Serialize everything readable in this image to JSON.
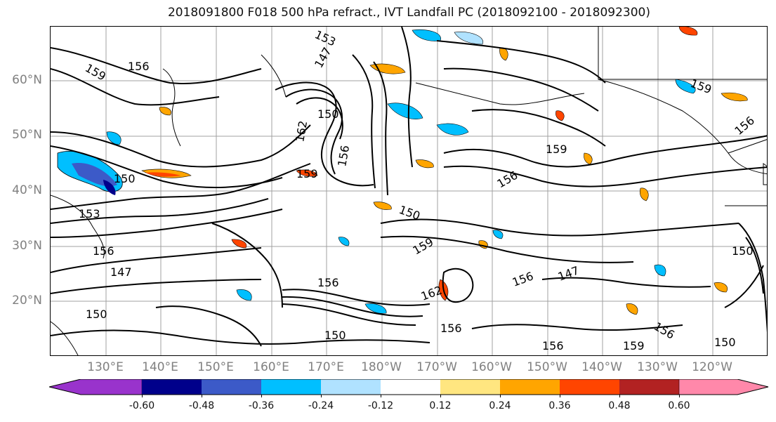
{
  "title": "2018091800 F018 500 hPa refract., IVT Landfall PC (2018092100 - 2018092300)",
  "map": {
    "lat_labels": [
      "60°N",
      "50°N",
      "40°N",
      "30°N",
      "20°N"
    ],
    "lon_labels": [
      "130°E",
      "140°E",
      "150°E",
      "160°E",
      "170°E",
      "180°W",
      "170°W",
      "160°W",
      "150°W",
      "140°W",
      "130°W",
      "120°W"
    ],
    "contour_labels": [
      "159",
      "156",
      "153",
      "150",
      "147",
      "162",
      "156",
      "159",
      "150",
      "156",
      "159",
      "150",
      "153",
      "156",
      "147",
      "150",
      "156",
      "162",
      "156",
      "159",
      "156",
      "147",
      "150",
      "156",
      "159",
      "156",
      "150",
      "159",
      "156",
      "150"
    ],
    "colors": {
      "contour": "#000000",
      "grid": "#a0a0a0",
      "coast": "#000000",
      "label": "#808080"
    }
  },
  "colorbar": {
    "tick_labels": [
      "-0.60",
      "-0.48",
      "-0.36",
      "-0.24",
      "-0.12",
      "0.12",
      "0.24",
      "0.36",
      "0.48",
      "0.60"
    ],
    "colors": [
      "#9933cc",
      "#00008b",
      "#3c5ac8",
      "#00bfff",
      "#b0e2ff",
      "#ffffff",
      "#ffe680",
      "#ffa500",
      "#ff4500",
      "#b22222",
      "#ff88aa",
      "#ff88aa"
    ]
  }
}
